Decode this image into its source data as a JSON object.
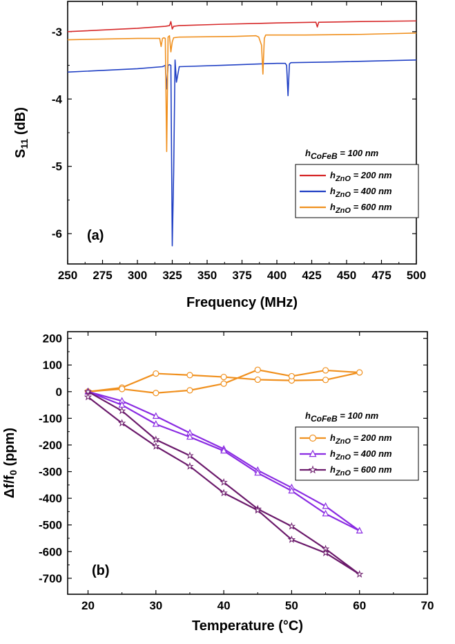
{
  "colors": {
    "axis": "#000000",
    "red": "#d62728",
    "blue": "#1f3fc4",
    "orange": "#f0901e",
    "purple": "#8a2be2",
    "dark_purple": "#6b1a6b"
  },
  "chart_data": [
    {
      "type": "line",
      "panel_label": "(a)",
      "xlabel": "Frequency (MHz)",
      "ylabel": "S11 (dB)",
      "ylabel_main": "S",
      "ylabel_sub": "11",
      "ylabel_rest": " (dB)",
      "xlim": [
        250,
        500
      ],
      "ylim": [
        -6.45,
        -2.55
      ],
      "x_ticks": [
        250,
        275,
        300,
        325,
        350,
        375,
        400,
        425,
        450,
        475,
        500
      ],
      "y_ticks": [
        -6,
        -5,
        -4,
        -3
      ],
      "legend_title": "hCoFeB = 100 nm",
      "legend_title_parts": [
        "h",
        "CoFeB",
        " = 100 nm"
      ],
      "legend_placement": "right",
      "series": [
        {
          "name": "hZnO = 200 nm",
          "name_parts": [
            "h",
            "ZnO",
            " = 200 nm"
          ],
          "color": "#d62728",
          "x": [
            250,
            300,
            320,
            323,
            324,
            325,
            326,
            330,
            360,
            400,
            428,
            429,
            430,
            431,
            460,
            500
          ],
          "y": [
            -3.0,
            -2.95,
            -2.92,
            -2.91,
            -2.85,
            -2.96,
            -2.92,
            -2.91,
            -2.89,
            -2.87,
            -2.86,
            -2.93,
            -2.86,
            -2.86,
            -2.85,
            -2.84
          ]
        },
        {
          "name": "hZnO = 400 nm",
          "name_parts": [
            "h",
            "ZnO",
            " = 400 nm"
          ],
          "color": "#1f3fc4",
          "x": [
            250,
            300,
            318,
            320,
            321,
            322,
            323,
            324,
            325,
            326,
            327,
            328,
            330,
            360,
            400,
            406,
            407,
            408,
            409,
            410,
            440,
            500
          ],
          "y": [
            -3.6,
            -3.55,
            -3.52,
            -3.5,
            -3.85,
            -3.5,
            -3.49,
            -3.5,
            -6.18,
            -5.1,
            -3.42,
            -3.75,
            -3.52,
            -3.5,
            -3.47,
            -3.47,
            -3.5,
            -3.95,
            -3.48,
            -3.46,
            -3.45,
            -3.42
          ]
        },
        {
          "name": "hZnO = 600 nm",
          "name_parts": [
            "h",
            "ZnO",
            " = 600 nm"
          ],
          "color": "#f0901e",
          "x": [
            250,
            300,
            316,
            317,
            318,
            319,
            320,
            321,
            322,
            323,
            324,
            325,
            326,
            330,
            370,
            385,
            387,
            389,
            390,
            391,
            392,
            395,
            420,
            460,
            500
          ],
          "y": [
            -3.12,
            -3.1,
            -3.1,
            -3.22,
            -3.1,
            -3.09,
            -3.1,
            -4.78,
            -3.08,
            -3.06,
            -3.3,
            -3.15,
            -3.09,
            -3.08,
            -3.07,
            -3.06,
            -3.08,
            -3.2,
            -3.63,
            -3.1,
            -3.05,
            -3.05,
            -3.05,
            -3.04,
            -3.02
          ]
        }
      ]
    },
    {
      "type": "line",
      "panel_label": "(b)",
      "xlabel": "Temperature (°C)",
      "ylabel": "Δf/f0 (ppm)",
      "ylabel_main": "Δf/f",
      "ylabel_sub": "0",
      "ylabel_rest": " (ppm)",
      "xlim": [
        17,
        70
      ],
      "ylim": [
        -760,
        225
      ],
      "x_ticks": [
        20,
        30,
        40,
        50,
        60,
        70
      ],
      "y_ticks": [
        -700,
        -600,
        -500,
        -400,
        -300,
        -200,
        -100,
        0,
        100,
        200
      ],
      "legend_title": "hCoFeB = 100 nm",
      "legend_title_parts": [
        "h",
        "CoFeB",
        " = 100 nm"
      ],
      "legend_placement": "right",
      "series": [
        {
          "name": "hZnO = 200 nm",
          "name_parts": [
            "h",
            "ZnO",
            " = 200 nm"
          ],
          "color": "#f0901e",
          "marker": "circle",
          "x": [
            20,
            25,
            30,
            35,
            40,
            45,
            50,
            55,
            60,
            55,
            50,
            45,
            40,
            35,
            30,
            25,
            20
          ],
          "y": [
            0,
            15,
            68,
            62,
            55,
            45,
            42,
            44,
            72,
            80,
            58,
            82,
            30,
            5,
            -5,
            10,
            0
          ]
        },
        {
          "name": "hZnO = 400 nm",
          "name_parts": [
            "h",
            "ZnO",
            " = 400 nm"
          ],
          "color": "#8a2be2",
          "marker": "triangle",
          "x": [
            20,
            25,
            30,
            35,
            40,
            45,
            50,
            55,
            60,
            55,
            50,
            45,
            40,
            35,
            30,
            25,
            20
          ],
          "y": [
            0,
            -35,
            -92,
            -155,
            -215,
            -295,
            -360,
            -430,
            -522,
            -458,
            -372,
            -305,
            -222,
            -170,
            -122,
            -50,
            0
          ]
        },
        {
          "name": "hZnO = 600 nm",
          "name_parts": [
            "h",
            "ZnO",
            " = 600 nm"
          ],
          "color": "#6b1a6b",
          "marker": "star",
          "x": [
            20,
            25,
            30,
            35,
            40,
            45,
            50,
            55,
            60,
            55,
            50,
            45,
            40,
            35,
            30,
            25,
            20
          ],
          "y": [
            0,
            -72,
            -180,
            -240,
            -340,
            -440,
            -505,
            -590,
            -685,
            -605,
            -555,
            -445,
            -380,
            -280,
            -205,
            -118,
            -20
          ]
        }
      ]
    }
  ]
}
